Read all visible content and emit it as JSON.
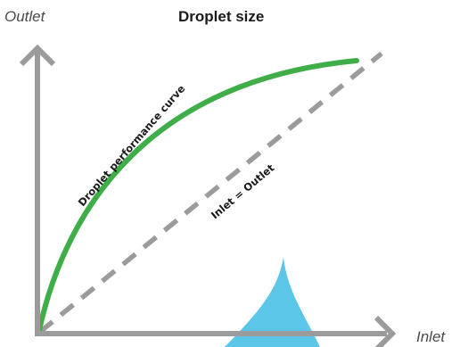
{
  "diagram": {
    "title": "Droplet size",
    "y_axis_label": "Outlet",
    "x_axis_label": "Inlet",
    "curve_label": "Droplet performance curve",
    "diagonal_label": "Inlet = Outlet",
    "colors": {
      "axis": "#9b9b9b",
      "curve": "#3fae49",
      "diagonal": "#9b9b9b",
      "droplet": "#5cc6e8",
      "text": "#1a1a1a"
    },
    "icons": {
      "droplet": "water-droplet-icon",
      "x_arrow": "arrow-right-icon",
      "y_arrow": "arrow-up-icon"
    }
  }
}
